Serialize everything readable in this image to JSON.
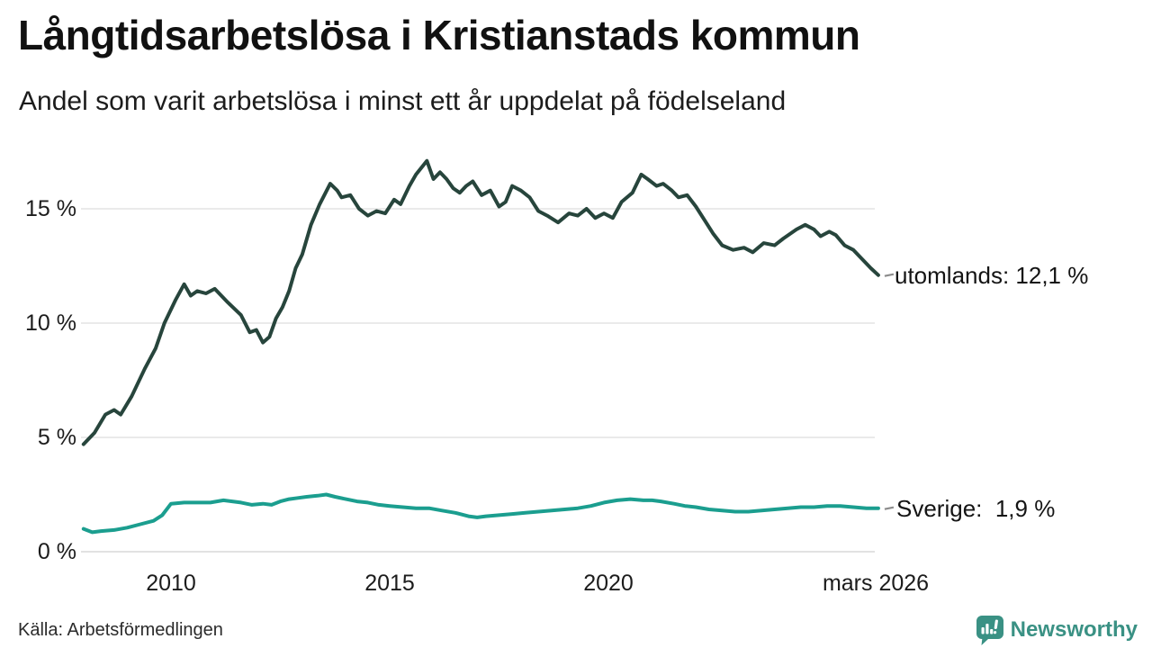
{
  "header": {
    "title": "Långtidsarbetslösa i Kristianstads kommun",
    "subtitle": "Andel som varit arbetslösa i minst ett år uppdelat på födelseland"
  },
  "chart_data": {
    "type": "line",
    "title": "Långtidsarbetslösa i Kristianstads kommun",
    "subtitle": "Andel som varit arbetslösa i minst ett år uppdelat på födelseland",
    "unit": "%",
    "grid": "horizontal",
    "legend_position": "end-of-line-labels",
    "x_axis": {
      "tick_labels": [
        "2010",
        "2015",
        "2020",
        "mars 2026"
      ],
      "tick_positions": [
        2010,
        2015,
        2020,
        2026.17
      ],
      "range": [
        2008.0,
        2026.25
      ]
    },
    "y_axis": {
      "tick_labels": [
        "15 %",
        "10 %",
        "5 %",
        "0 %"
      ],
      "tick_values": [
        15,
        10,
        5,
        0
      ],
      "range": [
        0,
        17.5
      ]
    },
    "series": [
      {
        "name": "utomlands",
        "label": "utomlands: 12,1 %",
        "latest_value": 12.1,
        "latest_period": "mars 2026",
        "color": "#27453c",
        "points": [
          [
            2008.0,
            4.7
          ],
          [
            2008.25,
            5.2
          ],
          [
            2008.5,
            6.0
          ],
          [
            2008.7,
            6.2
          ],
          [
            2008.85,
            6.0
          ],
          [
            2009.1,
            6.8
          ],
          [
            2009.4,
            8.0
          ],
          [
            2009.65,
            8.9
          ],
          [
            2009.85,
            10.0
          ],
          [
            2010.1,
            11.0
          ],
          [
            2010.3,
            11.7
          ],
          [
            2010.45,
            11.2
          ],
          [
            2010.6,
            11.4
          ],
          [
            2010.8,
            11.3
          ],
          [
            2011.0,
            11.5
          ],
          [
            2011.3,
            10.9
          ],
          [
            2011.6,
            10.35
          ],
          [
            2011.8,
            9.6
          ],
          [
            2011.95,
            9.7
          ],
          [
            2012.1,
            9.15
          ],
          [
            2012.25,
            9.4
          ],
          [
            2012.4,
            10.2
          ],
          [
            2012.55,
            10.7
          ],
          [
            2012.7,
            11.4
          ],
          [
            2012.85,
            12.4
          ],
          [
            2013.0,
            13.0
          ],
          [
            2013.2,
            14.3
          ],
          [
            2013.4,
            15.2
          ],
          [
            2013.64,
            16.1
          ],
          [
            2013.8,
            15.8
          ],
          [
            2013.9,
            15.5
          ],
          [
            2014.1,
            15.6
          ],
          [
            2014.3,
            15.0
          ],
          [
            2014.5,
            14.7
          ],
          [
            2014.7,
            14.9
          ],
          [
            2014.9,
            14.8
          ],
          [
            2015.1,
            15.4
          ],
          [
            2015.25,
            15.2
          ],
          [
            2015.45,
            16.0
          ],
          [
            2015.6,
            16.5
          ],
          [
            2015.85,
            17.1
          ],
          [
            2016.0,
            16.3
          ],
          [
            2016.15,
            16.6
          ],
          [
            2016.3,
            16.3
          ],
          [
            2016.45,
            15.9
          ],
          [
            2016.6,
            15.7
          ],
          [
            2016.75,
            16.0
          ],
          [
            2016.9,
            16.2
          ],
          [
            2017.1,
            15.6
          ],
          [
            2017.3,
            15.8
          ],
          [
            2017.5,
            15.1
          ],
          [
            2017.65,
            15.3
          ],
          [
            2017.8,
            16.0
          ],
          [
            2018.0,
            15.8
          ],
          [
            2018.2,
            15.5
          ],
          [
            2018.4,
            14.9
          ],
          [
            2018.6,
            14.7
          ],
          [
            2018.85,
            14.4
          ],
          [
            2019.1,
            14.8
          ],
          [
            2019.3,
            14.7
          ],
          [
            2019.5,
            15.0
          ],
          [
            2019.7,
            14.6
          ],
          [
            2019.9,
            14.8
          ],
          [
            2020.1,
            14.6
          ],
          [
            2020.3,
            15.3
          ],
          [
            2020.55,
            15.7
          ],
          [
            2020.75,
            16.5
          ],
          [
            2020.9,
            16.3
          ],
          [
            2021.1,
            16.0
          ],
          [
            2021.25,
            16.1
          ],
          [
            2021.45,
            15.8
          ],
          [
            2021.6,
            15.5
          ],
          [
            2021.8,
            15.6
          ],
          [
            2022.0,
            15.1
          ],
          [
            2022.2,
            14.5
          ],
          [
            2022.4,
            13.9
          ],
          [
            2022.6,
            13.4
          ],
          [
            2022.85,
            13.2
          ],
          [
            2023.1,
            13.3
          ],
          [
            2023.3,
            13.1
          ],
          [
            2023.55,
            13.5
          ],
          [
            2023.8,
            13.4
          ],
          [
            2024.0,
            13.7
          ],
          [
            2024.3,
            14.1
          ],
          [
            2024.5,
            14.3
          ],
          [
            2024.7,
            14.1
          ],
          [
            2024.85,
            13.8
          ],
          [
            2025.05,
            14.0
          ],
          [
            2025.2,
            13.85
          ],
          [
            2025.4,
            13.4
          ],
          [
            2025.6,
            13.2
          ],
          [
            2025.8,
            12.8
          ],
          [
            2026.0,
            12.4
          ],
          [
            2026.17,
            12.1
          ]
        ]
      },
      {
        "name": "Sverige",
        "label": "Sverige:  1,9 %",
        "latest_value": 1.9,
        "latest_period": "mars 2026",
        "color": "#1b9e8f",
        "points": [
          [
            2008.0,
            1.0
          ],
          [
            2008.2,
            0.85
          ],
          [
            2008.4,
            0.9
          ],
          [
            2008.7,
            0.95
          ],
          [
            2009.0,
            1.05
          ],
          [
            2009.3,
            1.2
          ],
          [
            2009.6,
            1.35
          ],
          [
            2009.8,
            1.6
          ],
          [
            2010.0,
            2.1
          ],
          [
            2010.3,
            2.15
          ],
          [
            2010.6,
            2.15
          ],
          [
            2010.9,
            2.15
          ],
          [
            2011.2,
            2.25
          ],
          [
            2011.4,
            2.2
          ],
          [
            2011.6,
            2.15
          ],
          [
            2011.85,
            2.05
          ],
          [
            2012.1,
            2.1
          ],
          [
            2012.3,
            2.05
          ],
          [
            2012.5,
            2.2
          ],
          [
            2012.7,
            2.3
          ],
          [
            2012.9,
            2.35
          ],
          [
            2013.1,
            2.4
          ],
          [
            2013.35,
            2.45
          ],
          [
            2013.55,
            2.5
          ],
          [
            2013.75,
            2.4
          ],
          [
            2014.0,
            2.3
          ],
          [
            2014.25,
            2.2
          ],
          [
            2014.5,
            2.15
          ],
          [
            2014.75,
            2.05
          ],
          [
            2015.0,
            2.0
          ],
          [
            2015.3,
            1.95
          ],
          [
            2015.6,
            1.9
          ],
          [
            2015.9,
            1.9
          ],
          [
            2016.2,
            1.8
          ],
          [
            2016.5,
            1.7
          ],
          [
            2016.8,
            1.55
          ],
          [
            2017.0,
            1.5
          ],
          [
            2017.2,
            1.55
          ],
          [
            2017.5,
            1.6
          ],
          [
            2017.8,
            1.65
          ],
          [
            2018.1,
            1.7
          ],
          [
            2018.4,
            1.75
          ],
          [
            2018.7,
            1.8
          ],
          [
            2019.0,
            1.85
          ],
          [
            2019.3,
            1.9
          ],
          [
            2019.6,
            2.0
          ],
          [
            2019.9,
            2.15
          ],
          [
            2020.2,
            2.25
          ],
          [
            2020.5,
            2.3
          ],
          [
            2020.8,
            2.25
          ],
          [
            2021.0,
            2.25
          ],
          [
            2021.2,
            2.2
          ],
          [
            2021.5,
            2.1
          ],
          [
            2021.75,
            2.0
          ],
          [
            2022.0,
            1.95
          ],
          [
            2022.3,
            1.85
          ],
          [
            2022.6,
            1.8
          ],
          [
            2022.9,
            1.75
          ],
          [
            2023.2,
            1.75
          ],
          [
            2023.5,
            1.8
          ],
          [
            2023.8,
            1.85
          ],
          [
            2024.1,
            1.9
          ],
          [
            2024.4,
            1.95
          ],
          [
            2024.7,
            1.95
          ],
          [
            2025.0,
            2.0
          ],
          [
            2025.3,
            2.0
          ],
          [
            2025.6,
            1.95
          ],
          [
            2025.9,
            1.9
          ],
          [
            2026.17,
            1.9
          ]
        ]
      }
    ]
  },
  "footer": {
    "source": "Källa: Arbetsförmedlingen",
    "brand": "Newsworthy",
    "brand_color": "#3a9184"
  }
}
